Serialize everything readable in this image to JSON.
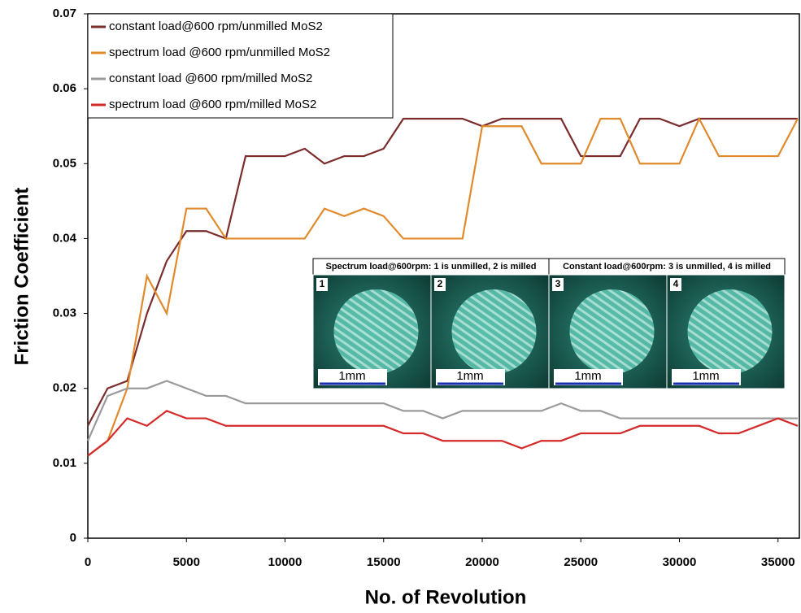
{
  "chart_data": {
    "type": "line",
    "xlabel": "No. of Revolution",
    "ylabel": "Friction Coefficient",
    "x": [
      0,
      1000,
      2000,
      3000,
      4000,
      5000,
      6000,
      7000,
      8000,
      9000,
      10000,
      11000,
      12000,
      13000,
      14000,
      15000,
      16000,
      17000,
      18000,
      19000,
      20000,
      21000,
      22000,
      23000,
      24000,
      25000,
      26000,
      27000,
      28000,
      29000,
      30000,
      31000,
      32000,
      33000,
      34000,
      35000,
      36000
    ],
    "series": [
      {
        "name": "constant load@600  rpm/unmilled  MoS2",
        "color": "#7b2c2c",
        "values": [
          0.015,
          0.02,
          0.021,
          0.03,
          0.037,
          0.041,
          0.041,
          0.04,
          0.051,
          0.051,
          0.051,
          0.052,
          0.05,
          0.051,
          0.051,
          0.052,
          0.056,
          0.056,
          0.056,
          0.056,
          0.055,
          0.056,
          0.056,
          0.056,
          0.056,
          0.051,
          0.051,
          0.051,
          0.056,
          0.056,
          0.055,
          0.056,
          0.056,
          0.056,
          0.056,
          0.056,
          0.056
        ]
      },
      {
        "name": "spectrum load @600 rpm/unmilled  MoS2",
        "color": "#e08a2c",
        "values": [
          0.011,
          0.013,
          0.02,
          0.035,
          0.03,
          0.044,
          0.044,
          0.04,
          0.04,
          0.04,
          0.04,
          0.04,
          0.044,
          0.043,
          0.044,
          0.043,
          0.04,
          0.04,
          0.04,
          0.04,
          0.055,
          0.055,
          0.055,
          0.05,
          0.05,
          0.05,
          0.056,
          0.056,
          0.05,
          0.05,
          0.05,
          0.056,
          0.051,
          0.051,
          0.051,
          0.051,
          0.056
        ]
      },
      {
        "name": "constant load  @600 rpm/milled  MoS2",
        "color": "#9a9a9a",
        "values": [
          0.013,
          0.019,
          0.02,
          0.02,
          0.021,
          0.02,
          0.019,
          0.019,
          0.018,
          0.018,
          0.018,
          0.018,
          0.018,
          0.018,
          0.018,
          0.018,
          0.017,
          0.017,
          0.016,
          0.017,
          0.017,
          0.017,
          0.017,
          0.017,
          0.018,
          0.017,
          0.017,
          0.016,
          0.016,
          0.016,
          0.016,
          0.016,
          0.016,
          0.016,
          0.016,
          0.016,
          0.016
        ]
      },
      {
        "name": "spectrum load  @600 rpm/milled  MoS2",
        "color": "#d42a2a",
        "values": [
          0.011,
          0.013,
          0.016,
          0.015,
          0.017,
          0.016,
          0.016,
          0.015,
          0.015,
          0.015,
          0.015,
          0.015,
          0.015,
          0.015,
          0.015,
          0.015,
          0.014,
          0.014,
          0.013,
          0.013,
          0.013,
          0.013,
          0.012,
          0.013,
          0.013,
          0.014,
          0.014,
          0.014,
          0.015,
          0.015,
          0.015,
          0.015,
          0.014,
          0.014,
          0.015,
          0.016,
          0.015
        ]
      }
    ],
    "xlim": [
      0,
      36000
    ],
    "xticks": [
      0,
      5000,
      10000,
      15000,
      20000,
      25000,
      30000,
      35000
    ],
    "ylim": [
      0,
      0.07
    ],
    "yticks": [
      0,
      0.01,
      0.02,
      0.03,
      0.04,
      0.05,
      0.06,
      0.07
    ],
    "legend": "upper left"
  },
  "inset": {
    "panels": [
      {
        "header": "Spectrum load@600rpm: 1 is unmilled, 2 is milled",
        "images": [
          {
            "label": "1",
            "scale": "1mm"
          },
          {
            "label": "2",
            "scale": "1mm"
          }
        ]
      },
      {
        "header": "Constant load@600rpm: 3 is unmilled, 4 is milled",
        "images": [
          {
            "label": "3",
            "scale": "1mm"
          },
          {
            "label": "4",
            "scale": "1mm"
          }
        ]
      }
    ]
  }
}
